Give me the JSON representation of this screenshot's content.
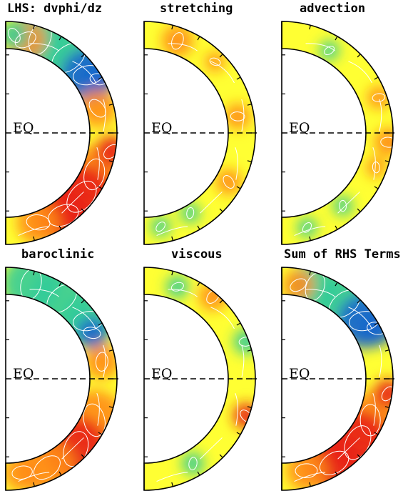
{
  "panels": [
    {
      "title": "LHS: dvphi/dz",
      "eq_label": "EQ",
      "pattern": "lhs"
    },
    {
      "title": "stretching",
      "eq_label": "EQ",
      "pattern": "stretch"
    },
    {
      "title": "advection",
      "eq_label": "EQ",
      "pattern": "advect"
    },
    {
      "title": "baroclinic",
      "eq_label": "EQ",
      "pattern": "baro"
    },
    {
      "title": "viscous",
      "eq_label": "EQ",
      "pattern": "visc"
    },
    {
      "title": "Sum of RHS Terms",
      "eq_label": "EQ",
      "pattern": "sum"
    }
  ],
  "colors": {
    "background_field": "#ffff33",
    "positive_strong": "#e8201a",
    "positive_mid": "#ff8c1a",
    "negative_mid": "#33cc99",
    "negative_strong": "#1a66cc",
    "contour": "#ffffff",
    "outline": "#000000"
  }
}
